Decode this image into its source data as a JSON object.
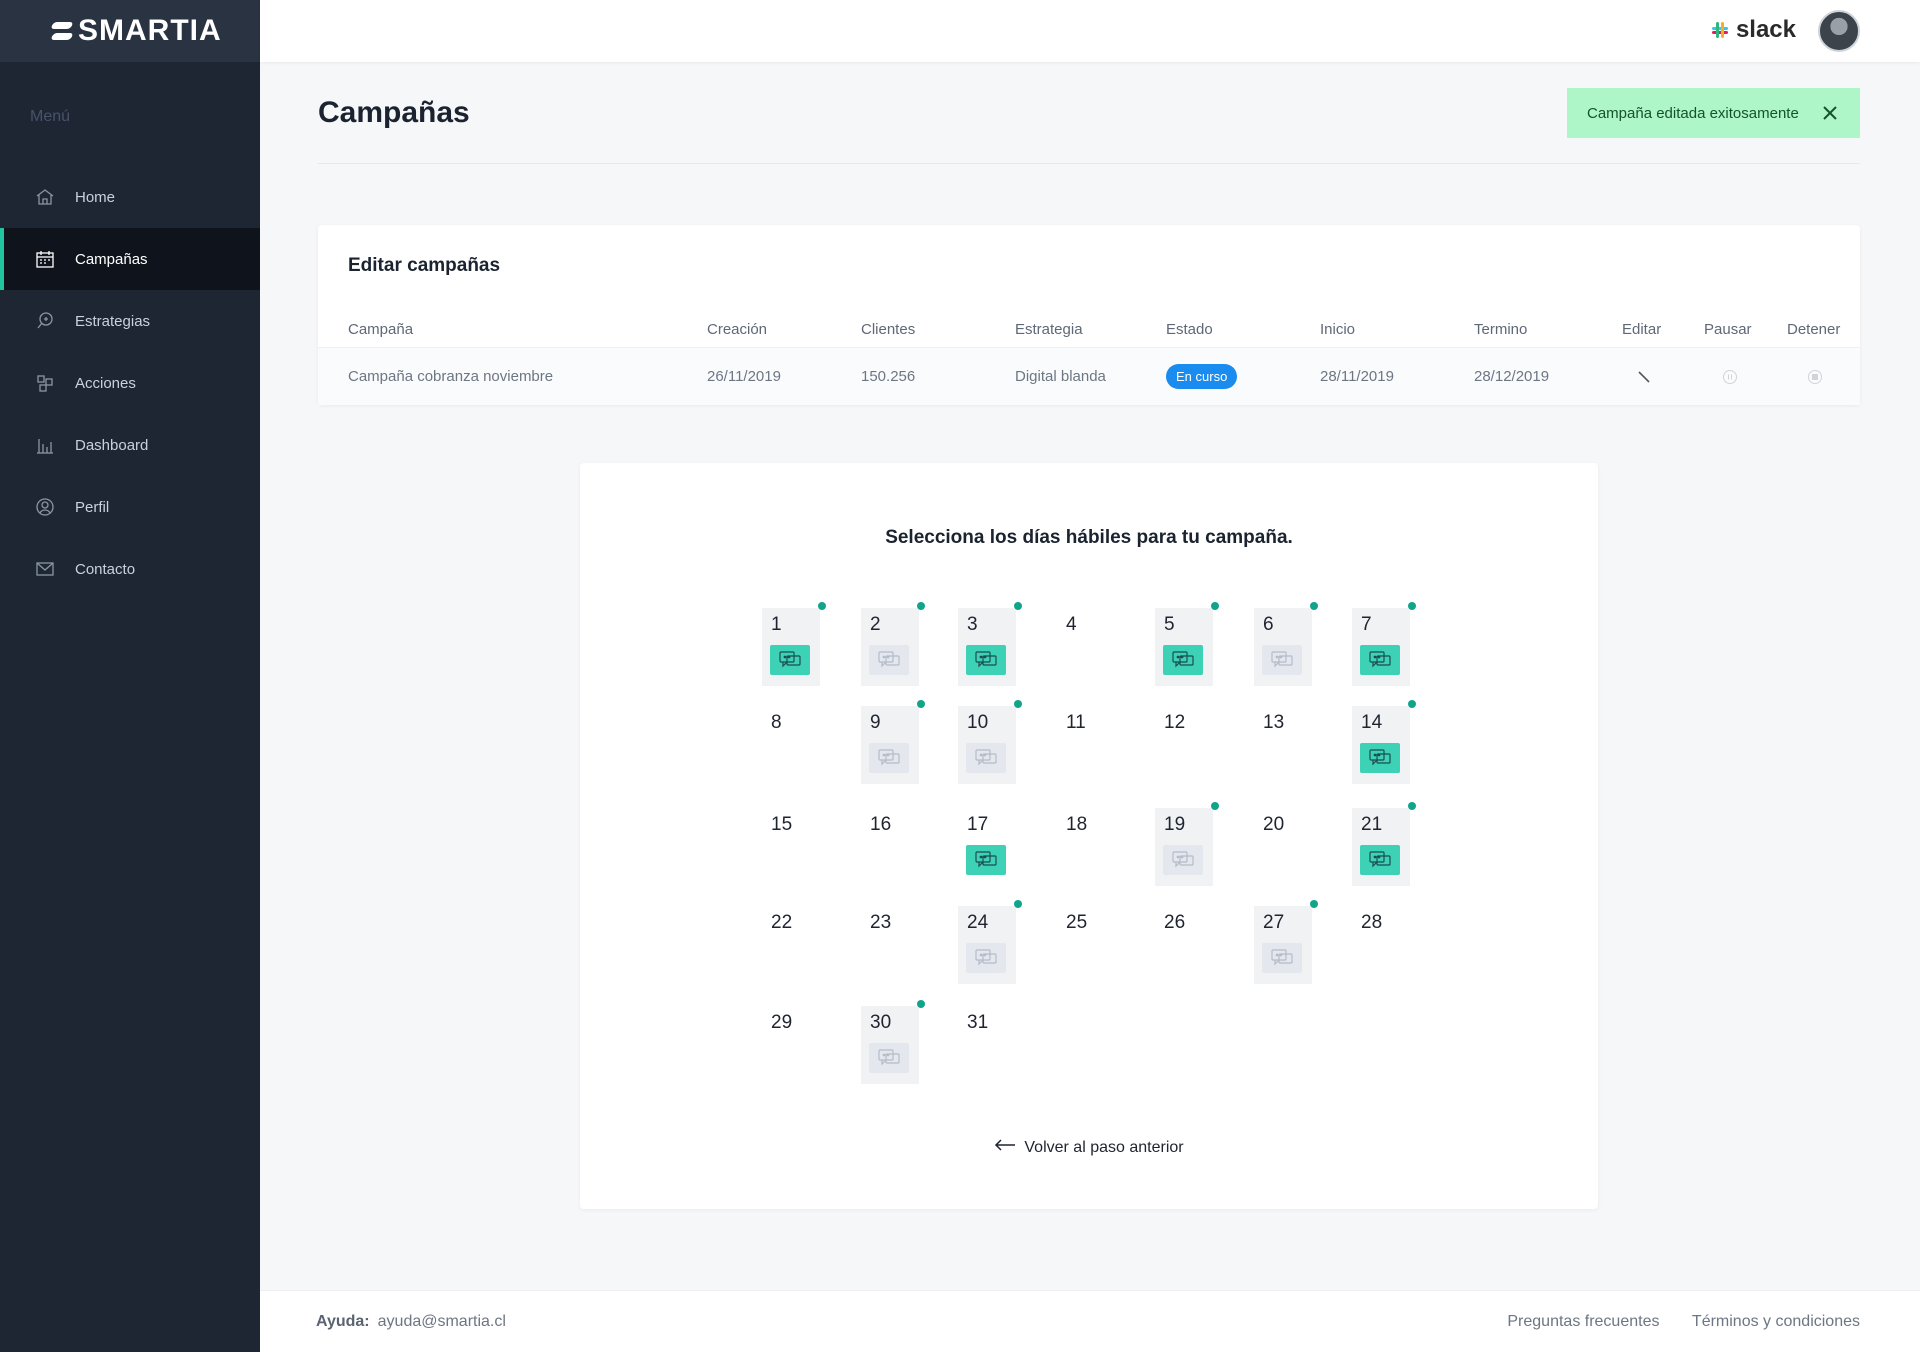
{
  "brand": {
    "name": "SMARTIA"
  },
  "sidebar": {
    "menu_title": "Menú",
    "items": [
      {
        "label": "Home",
        "icon": "home-icon"
      },
      {
        "label": "Campañas",
        "icon": "calendar-icon",
        "active": true
      },
      {
        "label": "Estrategias",
        "icon": "strategy-icon"
      },
      {
        "label": "Acciones",
        "icon": "actions-icon"
      },
      {
        "label": "Dashboard",
        "icon": "bar-chart-icon"
      },
      {
        "label": "Perfil",
        "icon": "user-icon"
      },
      {
        "label": "Contacto",
        "icon": "mail-icon"
      }
    ]
  },
  "topbar": {
    "integration": "slack",
    "avatar": "user-avatar"
  },
  "page": {
    "title": "Campañas"
  },
  "toast": {
    "message": "Campaña editada exitosamente"
  },
  "edit_card": {
    "title": "Editar campañas",
    "columns": [
      "Campaña",
      "Creación",
      "Clientes",
      "Estrategia",
      "Estado",
      "Inicio",
      "Termino",
      "Editar",
      "Pausar",
      "Detener"
    ],
    "row": {
      "campaign": "Campaña cobranza noviembre",
      "created": "26/11/2019",
      "clients": "150.256",
      "strategy": "Digital blanda",
      "status": "En curso",
      "start": "28/11/2019",
      "end": "28/12/2019"
    }
  },
  "calendar": {
    "title": "Selecciona los días hábiles para tu campaña.",
    "days": [
      {
        "n": "1",
        "sel": true,
        "chan": "on"
      },
      {
        "n": "2",
        "sel": true,
        "chan": "off"
      },
      {
        "n": "3",
        "sel": true,
        "chan": "on"
      },
      {
        "n": "4"
      },
      {
        "n": "5",
        "sel": true,
        "chan": "on"
      },
      {
        "n": "6",
        "sel": true,
        "chan": "off"
      },
      {
        "n": "7",
        "sel": true,
        "chan": "on"
      },
      {
        "n": "8"
      },
      {
        "n": "9",
        "sel": true,
        "chan": "off"
      },
      {
        "n": "10",
        "sel": true,
        "chan": "off"
      },
      {
        "n": "11"
      },
      {
        "n": "12"
      },
      {
        "n": "13"
      },
      {
        "n": "14",
        "sel": true,
        "chan": "on"
      },
      {
        "n": "15"
      },
      {
        "n": "16"
      },
      {
        "n": "17",
        "chan": "on"
      },
      {
        "n": "18"
      },
      {
        "n": "19",
        "sel": true,
        "chan": "off"
      },
      {
        "n": "20"
      },
      {
        "n": "21",
        "sel": true,
        "chan": "on"
      },
      {
        "n": "22"
      },
      {
        "n": "23"
      },
      {
        "n": "24",
        "sel": true,
        "chan": "off"
      },
      {
        "n": "25"
      },
      {
        "n": "26"
      },
      {
        "n": "27",
        "sel": true,
        "chan": "off"
      },
      {
        "n": "28"
      },
      {
        "n": "29"
      },
      {
        "n": "30",
        "sel": true,
        "chan": "off"
      },
      {
        "n": "31"
      }
    ],
    "back_label": "Volver al paso anterior"
  },
  "footer": {
    "help_label": "Ayuda:",
    "help_email": "ayuda@smartia.cl",
    "faq": "Preguntas frecuentes",
    "terms": "Términos y condiciones"
  },
  "colors": {
    "accent": "#20c5a0",
    "status_blue": "#1a8cf0",
    "toast_bg": "#aef5c8",
    "sidebar_bg": "#1f2633"
  }
}
